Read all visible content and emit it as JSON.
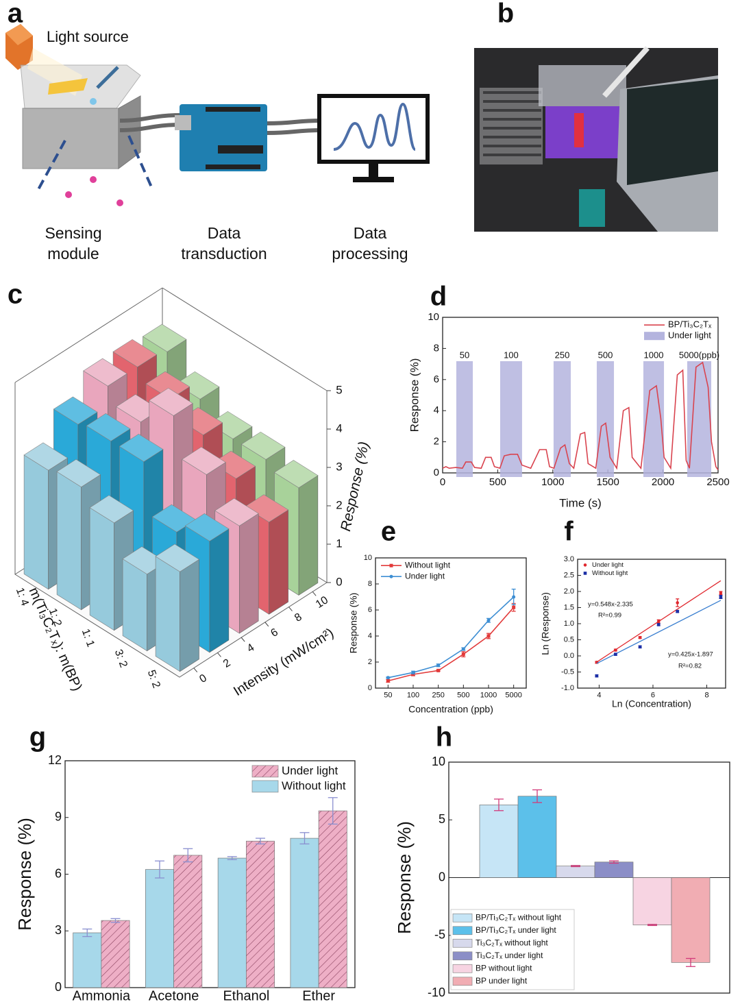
{
  "panel_labels": [
    "a",
    "b",
    "c",
    "d",
    "e",
    "f",
    "g",
    "h"
  ],
  "diagram": {
    "light_source": "Light source",
    "stages": [
      [
        "Sensing",
        "module"
      ],
      [
        "Data",
        "transduction"
      ],
      [
        "Data",
        "processing"
      ]
    ]
  },
  "chart_data": [
    {
      "type": "bar3d",
      "xlabel": "m(Ti₃C₂Tₓ): m(BP)",
      "ylabel": "Intensity (mW/cm²)",
      "zlabel": "Response (%)",
      "categories": [
        "1: 4",
        "1: 2",
        "1: 1",
        "3: 2",
        "5: 2"
      ],
      "y": [
        0,
        2.5,
        5,
        7.5,
        10
      ],
      "series": [
        {
          "color": "#96cadc",
          "values": [
            3.1,
            3.2,
            2.8,
            2.0,
            2.6
          ]
        },
        {
          "color": "#2aa9d8",
          "values": [
            3.8,
            3.9,
            3.9,
            2.6,
            2.9
          ]
        },
        {
          "color": "#e9a6bd",
          "values": [
            4.3,
            3.9,
            4.6,
            3.6,
            2.8
          ]
        },
        {
          "color": "#e2646e",
          "values": [
            4.3,
            4.0,
            3.6,
            3.0,
            2.4
          ]
        },
        {
          "color": "#a8d29a",
          "values": [
            4.2,
            3.5,
            3.0,
            3.0,
            2.8
          ]
        }
      ],
      "ylim": [
        -1.2,
        11.2
      ],
      "yticks": [
        0,
        2,
        4,
        6,
        8,
        10
      ],
      "zlim": [
        0,
        5
      ],
      "zticks": [
        0,
        1,
        2,
        3,
        4,
        5
      ]
    },
    {
      "type": "line",
      "xlabel": "Time (s)",
      "ylabel": "Response (%)",
      "x": [
        0,
        30,
        60,
        120,
        180,
        210,
        260,
        290,
        350,
        390,
        440,
        470,
        520,
        560,
        620,
        680,
        720,
        800,
        880,
        940,
        970,
        1010,
        1070,
        1110,
        1150,
        1190,
        1250,
        1290,
        1320,
        1390,
        1440,
        1480,
        1520,
        1580,
        1640,
        1690,
        1720,
        1800,
        1880,
        1940,
        1980,
        2010,
        2070,
        2130,
        2180,
        2210,
        2240,
        2300,
        2360,
        2410,
        2440,
        2480,
        2500
      ],
      "series": [
        {
          "name": "BP/Ti₃C₂Tₓ",
          "color": "#d9434e",
          "values": [
            0.3,
            0.4,
            0.3,
            0.35,
            0.3,
            0.7,
            0.7,
            0.35,
            0.3,
            1.0,
            1.0,
            0.4,
            0.3,
            1.1,
            1.2,
            1.2,
            0.5,
            0.3,
            1.5,
            1.5,
            0.4,
            0.3,
            1.6,
            1.8,
            0.6,
            0.3,
            2.5,
            2.6,
            0.6,
            0.3,
            3.0,
            3.2,
            1.0,
            0.3,
            4.0,
            4.2,
            1.0,
            0.3,
            5.3,
            5.6,
            3.5,
            1.0,
            0.3,
            6.3,
            6.6,
            0.8,
            0.3,
            6.8,
            7.1,
            5.5,
            2.0,
            0.4,
            0.2
          ]
        }
      ],
      "regions": {
        "name": "Under light",
        "color": "#b4b4de",
        "spans": [
          [
            124,
            274
          ],
          [
            522,
            721
          ],
          [
            1007,
            1163
          ],
          [
            1399,
            1555
          ],
          [
            1822,
            2009
          ],
          [
            2220,
            2438
          ]
        ],
        "labels": [
          "50",
          "100",
          "250",
          "500",
          "1000",
          "5000(ppb)"
        ]
      },
      "xlim": [
        0,
        2500
      ],
      "xticks": [
        0,
        500,
        1000,
        1500,
        2000,
        2500
      ],
      "ylim": [
        0,
        10
      ],
      "yticks": [
        0,
        2,
        4,
        6,
        8,
        10
      ],
      "legend": "upper right"
    },
    {
      "type": "line",
      "xlabel": "Concentration (ppb)",
      "ylabel": "Response (%)",
      "categories": [
        "50",
        "100",
        "250",
        "500",
        "1000",
        "5000"
      ],
      "series": [
        {
          "name": "Without light",
          "color": "#e23a3a",
          "marker": "square",
          "values": [
            0.55,
            1.05,
            1.35,
            2.6,
            4.0,
            6.2
          ],
          "errors": [
            0.1,
            0.1,
            0.05,
            0.2,
            0.2,
            0.3
          ]
        },
        {
          "name": "Under light",
          "color": "#3d8ed3",
          "marker": "circle",
          "values": [
            0.8,
            1.2,
            1.75,
            3.0,
            5.2,
            7.0
          ],
          "errors": [
            0.05,
            0.1,
            0.1,
            0.1,
            0.15,
            0.6
          ]
        }
      ],
      "ylim": [
        0,
        10
      ],
      "yticks": [
        0,
        2,
        4,
        6,
        8,
        10
      ],
      "legend": "upper left"
    },
    {
      "type": "scatter",
      "xlabel": "Ln (Concentration)",
      "ylabel": "Ln (Response)",
      "series": [
        {
          "name": "Under light",
          "color": "#e0282e",
          "marker": "circle",
          "x": [
            3.91,
            4.61,
            5.52,
            6.21,
            6.91,
            8.52
          ],
          "values": [
            -0.2,
            0.18,
            0.57,
            1.07,
            1.65,
            1.95
          ],
          "errors": [
            0.03,
            0.03,
            0.03,
            0.05,
            0.12,
            0.05
          ],
          "fit": {
            "slope": 0.548,
            "intercept": -2.335,
            "equation": "y=0.548x-2.335",
            "r2": "R²=0.99"
          }
        },
        {
          "name": "Without light",
          "color": "#1c2fa6",
          "marker": "square",
          "x": [
            3.91,
            4.61,
            5.52,
            6.21,
            6.91,
            8.52
          ],
          "values": [
            -0.62,
            0.05,
            0.28,
            0.97,
            1.38,
            1.83
          ],
          "errors": [
            0.03,
            0.03,
            0.03,
            0.03,
            0.03,
            0.05
          ],
          "fit": {
            "slope": 0.425,
            "intercept": -1.897,
            "equation": "y=0.425x-1.897",
            "r2": "R²=0.82",
            "color": "#3a7fd0"
          }
        }
      ],
      "xlim": [
        3.2,
        8.7
      ],
      "xticks": [
        4,
        6,
        8
      ],
      "ylim": [
        -1,
        3
      ],
      "yticks": [
        {
          "value": -1,
          "label": "-1.0"
        },
        {
          "value": -0.5,
          "label": "-0.5"
        },
        {
          "value": 0,
          "label": "0.0"
        },
        {
          "value": 0.5,
          "label": "0.5"
        },
        {
          "value": 1,
          "label": "1.0"
        },
        {
          "value": 1.5,
          "label": "1.5"
        },
        {
          "value": 2,
          "label": "2.0"
        },
        {
          "value": 2.5,
          "label": "2.5"
        },
        {
          "value": 3,
          "label": "3.0"
        }
      ],
      "legend": "upper left"
    },
    {
      "type": "bar",
      "ylabel": "Response (%)",
      "categories": [
        "Ammonia",
        "Acetone",
        "Ethanol",
        "Ether"
      ],
      "series": [
        {
          "name": "Without light",
          "color": "#a7d8ea",
          "values": [
            2.9,
            6.25,
            6.85,
            7.9
          ],
          "errors": [
            0.2,
            0.45,
            0.08,
            0.3
          ]
        },
        {
          "name": "Under light",
          "color": "#eeafc6",
          "hatch": true,
          "values": [
            3.55,
            7.0,
            7.75,
            9.35
          ],
          "errors": [
            0.1,
            0.35,
            0.15,
            0.7
          ]
        }
      ],
      "ylim": [
        0,
        12
      ],
      "yticks": [
        0,
        3,
        6,
        9,
        12
      ],
      "legend": "upper right",
      "error_color": "#8a8fd0"
    },
    {
      "type": "bar",
      "ylabel": "Response (%)",
      "series": [
        {
          "name": "BP/Ti₃C₂Tₓ without light",
          "color": "#c6e5f6",
          "values": [
            6.3
          ],
          "errors": [
            0.5
          ]
        },
        {
          "name": "BP/Ti₃C₂Tₓ under light",
          "color": "#5cc0ea",
          "values": [
            7.05
          ],
          "errors": [
            0.55
          ]
        },
        {
          "name": "Ti₃C₂Tₓ without light",
          "color": "#d7d9ec",
          "values": [
            1.0
          ],
          "errors": [
            0.05
          ]
        },
        {
          "name": "Ti₃C₂Tₓ under light",
          "color": "#8b8ec7",
          "values": [
            1.35
          ],
          "errors": [
            0.1
          ]
        },
        {
          "name": "BP without light",
          "color": "#f7d4e2",
          "values": [
            -4.1
          ],
          "errors": [
            0.05
          ]
        },
        {
          "name": "BP under light",
          "color": "#f1adb3",
          "values": [
            -7.35
          ],
          "errors": [
            0.35
          ]
        }
      ],
      "ylim": [
        -10,
        10
      ],
      "yticks": [
        -10,
        -5,
        0,
        5,
        10
      ],
      "legend": "lower left",
      "error_color": "#d23a7a"
    }
  ]
}
